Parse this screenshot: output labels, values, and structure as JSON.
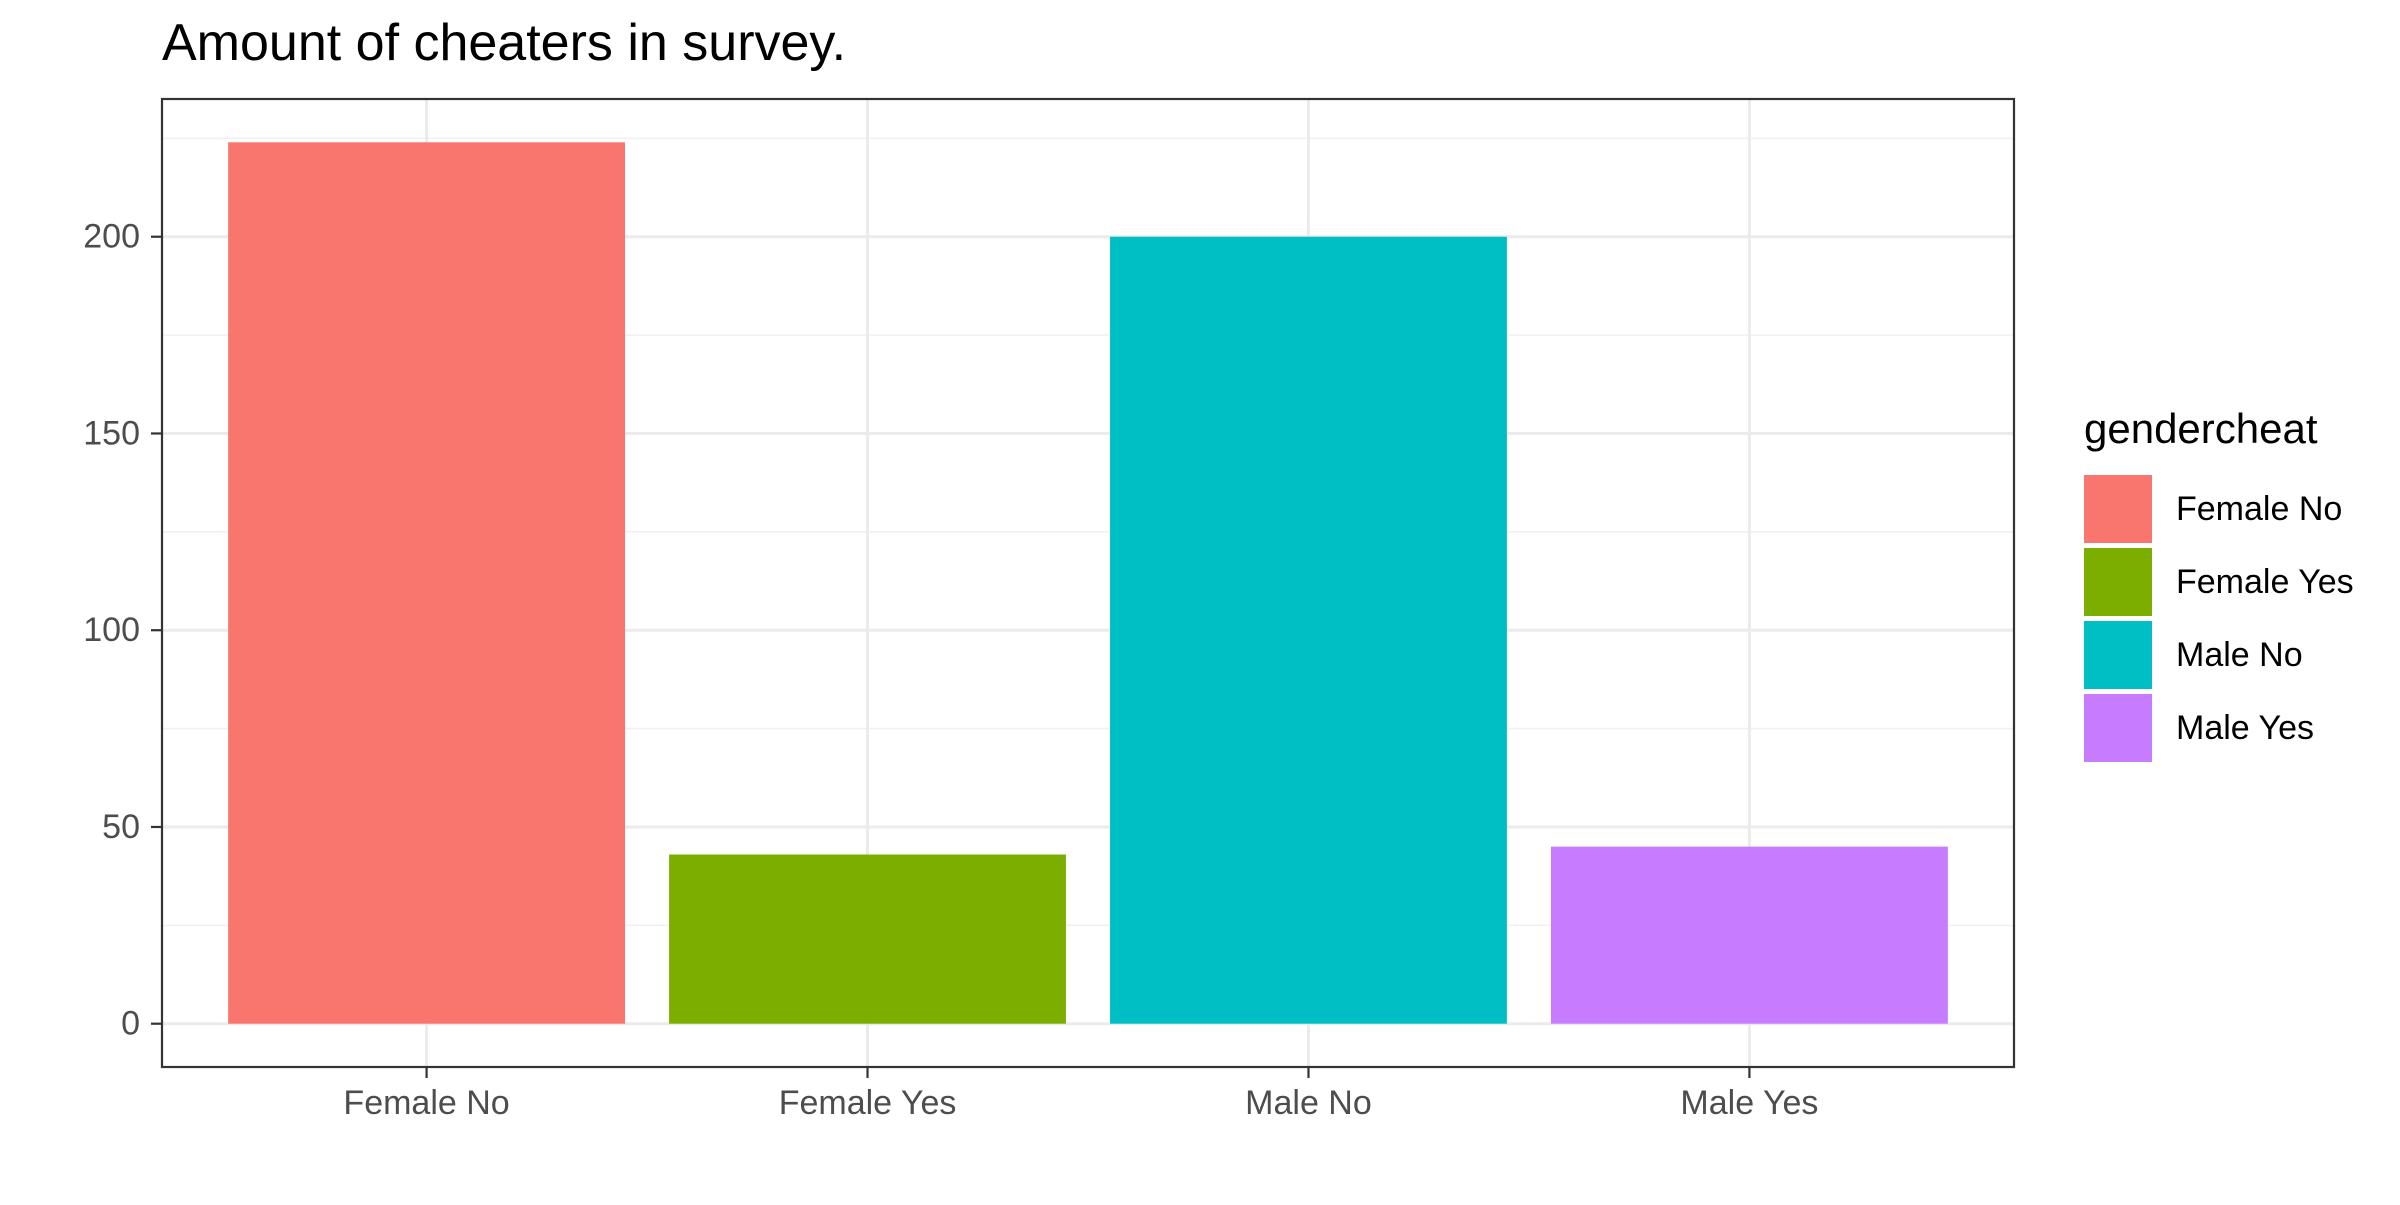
{
  "chart_data": {
    "type": "bar",
    "title": "Amount of cheaters in survey.",
    "xlabel": "",
    "ylabel": "",
    "categories": [
      "Female No",
      "Female Yes",
      "Male No",
      "Male Yes"
    ],
    "values": [
      224,
      43,
      200,
      45
    ],
    "colors": [
      "#F8766D",
      "#7CAE00",
      "#00BFC4",
      "#C77CFF"
    ],
    "ylim": [
      -11,
      235
    ],
    "yticks": [
      0,
      50,
      100,
      150,
      200
    ],
    "ytick_labels": [
      "0",
      "50",
      "100",
      "150",
      "200"
    ],
    "grid": true,
    "legend": {
      "title": "gendercheat",
      "position": "right",
      "items": [
        "Female No",
        "Female Yes",
        "Male No",
        "Male Yes"
      ]
    }
  }
}
